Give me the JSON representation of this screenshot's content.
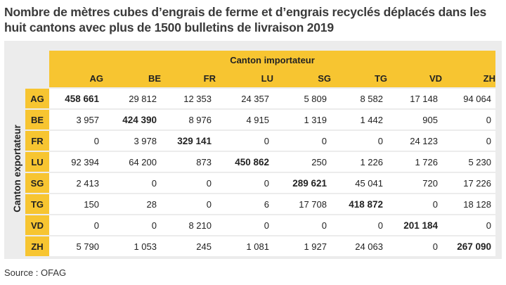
{
  "title": "Nombre de mètres cubes d’engrais de ferme et d’engrais recyclés déplacés dans les huit cantons avec plus de 1500 bulletins de livraison 2019",
  "source": "Source : OFAG",
  "colors": {
    "accent": "#f7c531",
    "panel": "#ececec",
    "cell": "#ffffff"
  },
  "chart_data": {
    "type": "table",
    "column_group_label": "Canton importateur",
    "row_group_label": "Canton exportateur",
    "columns": [
      "AG",
      "BE",
      "FR",
      "LU",
      "SG",
      "TG",
      "VD",
      "ZH"
    ],
    "rows": [
      {
        "label": "AG",
        "values": [
          "458 661",
          "29 812",
          "12 353",
          "24 357",
          "5 809",
          "8 582",
          "17 148",
          "94 064"
        ]
      },
      {
        "label": "BE",
        "values": [
          "3 957",
          "424 390",
          "8 976",
          "4 915",
          "1 319",
          "1 442",
          "905",
          "0"
        ]
      },
      {
        "label": "FR",
        "values": [
          "0",
          "3 978",
          "329 141",
          "0",
          "0",
          "0",
          "24 123",
          "0"
        ]
      },
      {
        "label": "LU",
        "values": [
          "92 394",
          "64 200",
          "873",
          "450 862",
          "250",
          "1 226",
          "1 726",
          "5 230"
        ]
      },
      {
        "label": "SG",
        "values": [
          "2 413",
          "0",
          "0",
          "0",
          "289 621",
          "45 041",
          "720",
          "17 226"
        ]
      },
      {
        "label": "TG",
        "values": [
          "150",
          "28",
          "0",
          "6",
          "17 708",
          "418 872",
          "0",
          "18 128"
        ]
      },
      {
        "label": "VD",
        "values": [
          "0",
          "0",
          "8 210",
          "0",
          "0",
          "0",
          "201 184",
          "0"
        ]
      },
      {
        "label": "ZH",
        "values": [
          "5 790",
          "1 053",
          "245",
          "1 081",
          "1 927",
          "24 063",
          "0",
          "267 090"
        ]
      }
    ]
  }
}
